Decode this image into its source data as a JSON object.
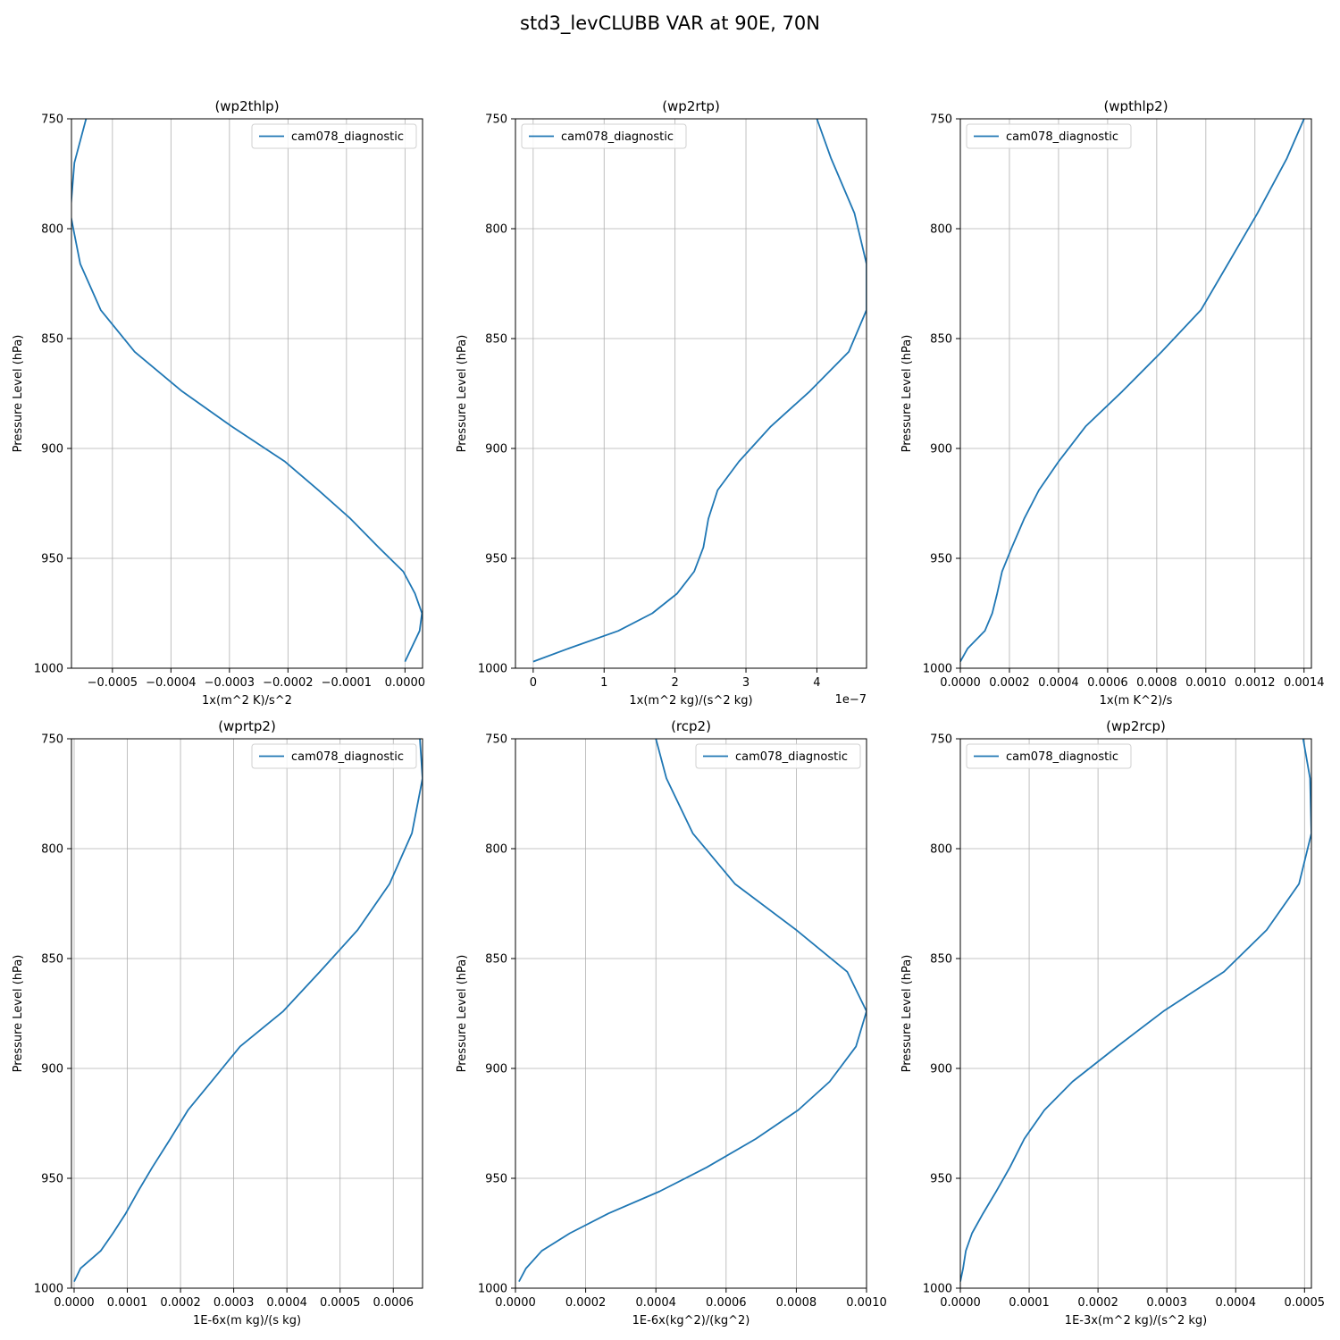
{
  "figure": {
    "title": "std3_levCLUBB VAR at 90E, 70N"
  },
  "colors": {
    "line": "#1f77b4",
    "grid": "#b0b0b0"
  },
  "chart_data": [
    {
      "type": "line",
      "title": "(wp2thlp)",
      "xlabel": "1x(m^2 K)/s^2",
      "ylabel": "Pressure Level (hPa)",
      "xlim": [
        -0.00057,
        3e-05
      ],
      "ylim": [
        1000,
        750
      ],
      "xticks": [
        -0.0005,
        -0.0004,
        -0.0003,
        -0.0002,
        -0.0001,
        0.0
      ],
      "xtick_labels": [
        "−0.0005",
        "−0.0004",
        "−0.0003",
        "−0.0002",
        "−0.0001",
        "0.0000"
      ],
      "yticks": [
        750,
        800,
        850,
        900,
        950,
        1000
      ],
      "ytick_labels": [
        "750",
        "800",
        "850",
        "900",
        "950",
        "1000"
      ],
      "offset_text": "",
      "grid": true,
      "legend_loc": "upper-right",
      "series": [
        {
          "name": "cam078_diagnostic",
          "x": [
            -0.000545,
            -0.000565,
            -0.000572,
            -0.000555,
            -0.00052,
            -0.000462,
            -0.000381,
            -0.000296,
            -0.000205,
            -0.000148,
            -9.3e-05,
            -4.5e-05,
            -3e-06,
            1.7e-05,
            2.9e-05,
            2.5e-05,
            0.0
          ],
          "y": [
            750,
            770,
            793,
            816,
            837,
            856,
            874,
            890,
            906,
            919,
            932,
            945,
            956,
            966,
            975,
            983,
            997
          ]
        }
      ]
    },
    {
      "type": "line",
      "title": "(wp2rtp)",
      "xlabel": "1x(m^2 kg)/(s^2 kg)",
      "ylabel": "Pressure Level (hPa)",
      "xlim": [
        -0.25,
        4.7
      ],
      "ylim": [
        1000,
        750
      ],
      "xticks": [
        0,
        1,
        2,
        3,
        4
      ],
      "xtick_labels": [
        "0",
        "1",
        "2",
        "3",
        "4"
      ],
      "yticks": [
        750,
        800,
        850,
        900,
        950,
        1000
      ],
      "ytick_labels": [
        "750",
        "800",
        "850",
        "900",
        "950",
        "1000"
      ],
      "offset_text": "1e−7",
      "grid": true,
      "legend_loc": "upper-left",
      "series": [
        {
          "name": "cam078_diagnostic",
          "x": [
            4.0,
            4.2,
            4.53,
            4.7,
            4.7,
            4.45,
            3.9,
            3.35,
            2.9,
            2.6,
            2.47,
            2.4,
            2.27,
            2.03,
            1.68,
            1.2,
            0.5,
            0.0
          ],
          "y": [
            750,
            768,
            793,
            816,
            837,
            856,
            874,
            890,
            906,
            919,
            932,
            945,
            956,
            966,
            975,
            983,
            991,
            997
          ]
        }
      ]
    },
    {
      "type": "line",
      "title": "(wpthlp2)",
      "xlabel": "1x(m K^2)/s",
      "ylabel": "Pressure Level (hPa)",
      "xlim": [
        0.0,
        0.00143
      ],
      "ylim": [
        1000,
        750
      ],
      "xticks": [
        0.0,
        0.0002,
        0.0004,
        0.0006,
        0.0008,
        0.001,
        0.0012,
        0.0014
      ],
      "xtick_labels": [
        "0.0000",
        "0.0002",
        "0.0004",
        "0.0006",
        "0.0008",
        "0.0010",
        "0.0012",
        "0.0014"
      ],
      "yticks": [
        750,
        800,
        850,
        900,
        950,
        1000
      ],
      "ytick_labels": [
        "750",
        "800",
        "850",
        "900",
        "950",
        "1000"
      ],
      "offset_text": "",
      "grid": true,
      "legend_loc": "upper-left",
      "series": [
        {
          "name": "cam078_diagnostic",
          "x": [
            0.0014,
            0.00133,
            0.00121,
            0.00109,
            0.00098,
            0.00082,
            0.00066,
            0.00051,
            0.0004,
            0.00032,
            0.00026,
            0.00021,
            0.00017,
            0.00015,
            0.00013,
            0.0001,
            3e-05,
            0.0
          ],
          "y": [
            750,
            768,
            793,
            816,
            837,
            856,
            874,
            890,
            906,
            919,
            932,
            945,
            956,
            966,
            975,
            983,
            991,
            997
          ]
        }
      ]
    },
    {
      "type": "line",
      "title": "(wprtp2)",
      "xlabel": "1E-6x(m kg)/(s kg)",
      "ylabel": "Pressure Level (hPa)",
      "xlim": [
        -5e-06,
        0.000655
      ],
      "ylim": [
        1000,
        750
      ],
      "xticks": [
        0.0,
        0.0001,
        0.0002,
        0.0003,
        0.0004,
        0.0005,
        0.0006
      ],
      "xtick_labels": [
        "0.0000",
        "0.0001",
        "0.0002",
        "0.0003",
        "0.0004",
        "0.0005",
        "0.0006"
      ],
      "yticks": [
        750,
        800,
        850,
        900,
        950,
        1000
      ],
      "ytick_labels": [
        "750",
        "800",
        "850",
        "900",
        "950",
        "1000"
      ],
      "offset_text": "",
      "grid": true,
      "legend_loc": "upper-right",
      "series": [
        {
          "name": "cam078_diagnostic",
          "x": [
            0.00065,
            0.000655,
            0.000635,
            0.000593,
            0.000533,
            0.000462,
            0.000393,
            0.000312,
            0.000258,
            0.000214,
            0.000181,
            0.000147,
            0.00012,
            9.7e-05,
            7.3e-05,
            5e-05,
            1.2e-05,
            0.0
          ],
          "y": [
            750,
            768,
            793,
            816,
            837,
            856,
            874,
            890,
            906,
            919,
            932,
            945,
            956,
            966,
            975,
            983,
            991,
            997
          ]
        }
      ]
    },
    {
      "type": "line",
      "title": "(rcp2)",
      "xlabel": "1E-6x(kg^2)/(kg^2)",
      "ylabel": "Pressure Level (hPa)",
      "xlim": [
        0.0,
        0.001
      ],
      "ylim": [
        1000,
        750
      ],
      "xticks": [
        0.0,
        0.0002,
        0.0004,
        0.0006,
        0.0008,
        0.001
      ],
      "xtick_labels": [
        "0.0000",
        "0.0002",
        "0.0004",
        "0.0006",
        "0.0008",
        "0.0010"
      ],
      "yticks": [
        750,
        800,
        850,
        900,
        950,
        1000
      ],
      "ytick_labels": [
        "750",
        "800",
        "850",
        "900",
        "950",
        "1000"
      ],
      "offset_text": "",
      "grid": true,
      "legend_loc": "upper-right",
      "series": [
        {
          "name": "cam078_diagnostic",
          "x": [
            0.0004,
            0.00043,
            0.000505,
            0.000625,
            0.0008,
            0.000945,
            0.001,
            0.00097,
            0.000895,
            0.000805,
            0.000685,
            0.000545,
            0.00041,
            0.000265,
            0.000155,
            7.5e-05,
            3e-05,
            1e-05
          ],
          "y": [
            750,
            768,
            793,
            816,
            837,
            856,
            874,
            890,
            906,
            919,
            932,
            945,
            956,
            966,
            975,
            983,
            991,
            997
          ]
        }
      ]
    },
    {
      "type": "line",
      "title": "(wp2rcp)",
      "xlabel": "1E-3x(m^2 kg)/(s^2 kg)",
      "ylabel": "Pressure Level (hPa)",
      "xlim": [
        0.0,
        0.00051
      ],
      "ylim": [
        1000,
        750
      ],
      "xticks": [
        0.0,
        0.0001,
        0.0002,
        0.0003,
        0.0004,
        0.0005
      ],
      "xtick_labels": [
        "0.0000",
        "0.0001",
        "0.0002",
        "0.0003",
        "0.0004",
        "0.0005"
      ],
      "yticks": [
        750,
        800,
        850,
        900,
        950,
        1000
      ],
      "ytick_labels": [
        "750",
        "800",
        "850",
        "900",
        "950",
        "1000"
      ],
      "offset_text": "",
      "grid": true,
      "legend_loc": "upper-left",
      "series": [
        {
          "name": "cam078_diagnostic",
          "x": [
            0.000498,
            0.000508,
            0.00051,
            0.000492,
            0.000445,
            0.000383,
            0.000295,
            0.000228,
            0.000163,
            0.000122,
            9.3e-05,
            7.2e-05,
            5.2e-05,
            3.3e-05,
            1.7e-05,
            8e-06,
            4e-06,
            0.0
          ],
          "y": [
            750,
            768,
            793,
            816,
            837,
            856,
            874,
            890,
            906,
            919,
            932,
            945,
            956,
            966,
            975,
            983,
            991,
            997
          ]
        }
      ]
    }
  ]
}
